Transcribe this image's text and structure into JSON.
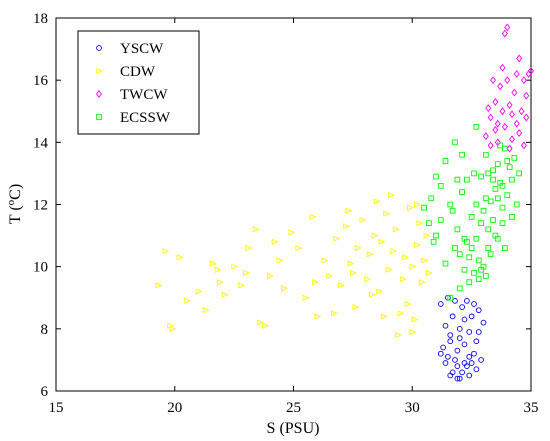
{
  "chart_data": {
    "type": "scatter",
    "xlabel": "S (PSU)",
    "ylabel_main": "T (",
    "ylabel_sup": "o",
    "ylabel_tail": "C)",
    "xlim": [
      15,
      35
    ],
    "ylim": [
      6,
      18
    ],
    "xticks": [
      "15",
      "20",
      "25",
      "30",
      "35"
    ],
    "yticks": [
      "6",
      "8",
      "10",
      "12",
      "14",
      "16",
      "18"
    ],
    "grid": false,
    "legend_position": "top-left",
    "series": [
      {
        "name": "YSCW",
        "color": "#0000ff",
        "marker": "circle",
        "points": [
          [
            31.2,
            8.8
          ],
          [
            31.4,
            8.1
          ],
          [
            31.6,
            7.8
          ],
          [
            31.3,
            7.4
          ],
          [
            31.5,
            7.1
          ],
          [
            31.8,
            7.0
          ],
          [
            31.9,
            6.8
          ],
          [
            31.7,
            6.6
          ],
          [
            31.6,
            6.5
          ],
          [
            32.0,
            6.4
          ],
          [
            32.1,
            6.6
          ],
          [
            32.3,
            6.8
          ],
          [
            32.4,
            6.5
          ],
          [
            32.5,
            6.9
          ],
          [
            31.9,
            7.3
          ],
          [
            32.2,
            7.5
          ],
          [
            32.6,
            7.2
          ],
          [
            32.7,
            7.6
          ],
          [
            32.4,
            7.9
          ],
          [
            32.0,
            8.0
          ],
          [
            32.2,
            8.3
          ],
          [
            32.5,
            8.4
          ],
          [
            32.8,
            8.6
          ],
          [
            32.1,
            8.7
          ],
          [
            31.8,
            8.9
          ],
          [
            32.3,
            8.9
          ],
          [
            32.6,
            8.8
          ],
          [
            31.5,
            9.0
          ],
          [
            32.9,
            7.0
          ],
          [
            32.7,
            6.7
          ],
          [
            31.4,
            6.9
          ],
          [
            31.2,
            7.2
          ],
          [
            32.0,
            7.7
          ],
          [
            31.7,
            8.4
          ],
          [
            32.4,
            7.1
          ],
          [
            33.0,
            8.2
          ],
          [
            31.9,
            6.4
          ],
          [
            32.8,
            7.9
          ],
          [
            31.6,
            7.6
          ],
          [
            32.2,
            6.9
          ]
        ]
      },
      {
        "name": "CDW",
        "color": "#ffff00",
        "marker": "triangle-right",
        "points": [
          [
            19.3,
            9.4
          ],
          [
            19.6,
            10.5
          ],
          [
            19.8,
            8.1
          ],
          [
            19.9,
            8.0
          ],
          [
            20.2,
            10.3
          ],
          [
            20.5,
            8.9
          ],
          [
            21.0,
            9.2
          ],
          [
            21.3,
            8.6
          ],
          [
            21.6,
            10.1
          ],
          [
            21.9,
            9.5
          ],
          [
            22.1,
            9.1
          ],
          [
            22.5,
            10.0
          ],
          [
            23.0,
            9.8
          ],
          [
            23.4,
            11.2
          ],
          [
            23.6,
            8.2
          ],
          [
            23.8,
            8.1
          ],
          [
            24.0,
            9.7
          ],
          [
            24.2,
            10.8
          ],
          [
            24.6,
            9.3
          ],
          [
            24.9,
            11.1
          ],
          [
            25.2,
            10.6
          ],
          [
            25.5,
            9.0
          ],
          [
            25.8,
            11.6
          ],
          [
            26.0,
            8.4
          ],
          [
            26.3,
            10.2
          ],
          [
            26.5,
            9.7
          ],
          [
            26.8,
            10.9
          ],
          [
            27.0,
            9.4
          ],
          [
            27.2,
            11.3
          ],
          [
            27.4,
            10.1
          ],
          [
            27.5,
            9.8
          ],
          [
            27.7,
            10.6
          ],
          [
            27.9,
            11.5
          ],
          [
            28.1,
            9.6
          ],
          [
            28.2,
            10.4
          ],
          [
            28.4,
            11.0
          ],
          [
            28.6,
            9.2
          ],
          [
            28.7,
            10.8
          ],
          [
            28.9,
            11.7
          ],
          [
            29.0,
            9.9
          ],
          [
            29.2,
            10.5
          ],
          [
            29.3,
            11.2
          ],
          [
            29.5,
            8.5
          ],
          [
            29.6,
            9.6
          ],
          [
            29.7,
            10.3
          ],
          [
            29.9,
            11.9
          ],
          [
            30.0,
            10.0
          ],
          [
            30.1,
            8.3
          ],
          [
            30.2,
            10.7
          ],
          [
            30.3,
            11.4
          ],
          [
            30.4,
            9.5
          ],
          [
            30.5,
            10.2
          ],
          [
            30.6,
            11.0
          ],
          [
            30.7,
            9.8
          ],
          [
            29.8,
            8.8
          ],
          [
            30.0,
            7.9
          ],
          [
            29.4,
            7.8
          ],
          [
            28.8,
            8.4
          ],
          [
            28.3,
            9.1
          ],
          [
            27.6,
            8.7
          ],
          [
            26.7,
            8.5
          ],
          [
            25.9,
            9.5
          ],
          [
            24.4,
            10.2
          ],
          [
            23.1,
            10.6
          ],
          [
            22.8,
            9.4
          ],
          [
            21.8,
            9.9
          ],
          [
            27.3,
            11.8
          ],
          [
            28.5,
            12.1
          ],
          [
            29.1,
            12.3
          ],
          [
            30.2,
            12.0
          ]
        ]
      },
      {
        "name": "TWCW",
        "color": "#ff00ff",
        "marker": "diamond",
        "points": [
          [
            33.1,
            14.2
          ],
          [
            33.3,
            14.8
          ],
          [
            33.5,
            15.3
          ],
          [
            33.6,
            14.0
          ],
          [
            33.7,
            15.8
          ],
          [
            33.8,
            16.4
          ],
          [
            33.9,
            17.5
          ],
          [
            34.0,
            17.7
          ],
          [
            33.4,
            16.0
          ],
          [
            33.2,
            15.1
          ],
          [
            33.9,
            14.5
          ],
          [
            34.1,
            15.2
          ],
          [
            34.2,
            14.1
          ],
          [
            34.3,
            15.6
          ],
          [
            34.4,
            16.2
          ],
          [
            34.5,
            16.7
          ],
          [
            34.6,
            15.0
          ],
          [
            34.7,
            16.0
          ],
          [
            34.8,
            14.8
          ],
          [
            34.9,
            16.2
          ],
          [
            35.0,
            16.3
          ],
          [
            34.8,
            15.5
          ],
          [
            34.5,
            14.3
          ],
          [
            34.2,
            14.9
          ],
          [
            33.6,
            14.6
          ],
          [
            33.3,
            13.9
          ],
          [
            34.1,
            13.8
          ],
          [
            33.8,
            15.0
          ],
          [
            34.4,
            14.6
          ],
          [
            34.7,
            13.9
          ],
          [
            33.5,
            14.4
          ],
          [
            34.0,
            16.0
          ]
        ]
      },
      {
        "name": "ECSSW",
        "color": "#00ff00",
        "marker": "square",
        "points": [
          [
            30.5,
            11.9
          ],
          [
            30.8,
            12.2
          ],
          [
            31.0,
            11.0
          ],
          [
            31.2,
            12.6
          ],
          [
            31.4,
            13.4
          ],
          [
            31.6,
            12.0
          ],
          [
            31.8,
            14.0
          ],
          [
            31.9,
            11.2
          ],
          [
            32.0,
            10.4
          ],
          [
            32.1,
            12.4
          ],
          [
            32.2,
            9.9
          ],
          [
            32.3,
            10.8
          ],
          [
            32.4,
            9.5
          ],
          [
            32.5,
            11.6
          ],
          [
            32.6,
            13.0
          ],
          [
            32.7,
            14.5
          ],
          [
            32.8,
            10.2
          ],
          [
            32.9,
            12.9
          ],
          [
            33.0,
            11.8
          ],
          [
            33.1,
            13.6
          ],
          [
            33.2,
            10.6
          ],
          [
            33.3,
            12.1
          ],
          [
            33.4,
            13.1
          ],
          [
            33.5,
            12.5
          ],
          [
            33.6,
            13.3
          ],
          [
            33.7,
            12.7
          ],
          [
            33.8,
            11.9
          ],
          [
            33.9,
            13.8
          ],
          [
            34.0,
            12.3
          ],
          [
            34.1,
            13.2
          ],
          [
            34.2,
            12.8
          ],
          [
            34.3,
            13.5
          ],
          [
            34.4,
            12.0
          ],
          [
            34.5,
            13.0
          ],
          [
            33.2,
            11.2
          ],
          [
            33.4,
            11.5
          ],
          [
            33.6,
            10.9
          ],
          [
            33.8,
            11.4
          ],
          [
            33.0,
            10.0
          ],
          [
            32.8,
            9.6
          ],
          [
            32.6,
            9.8
          ],
          [
            32.4,
            10.3
          ],
          [
            32.2,
            10.9
          ],
          [
            32.0,
            9.3
          ],
          [
            31.8,
            10.6
          ],
          [
            31.6,
            9.0
          ],
          [
            31.4,
            10.1
          ],
          [
            31.2,
            11.5
          ],
          [
            31.0,
            12.9
          ],
          [
            30.9,
            10.8
          ],
          [
            30.7,
            11.4
          ],
          [
            33.7,
            13.9
          ],
          [
            34.2,
            11.6
          ],
          [
            33.9,
            10.6
          ],
          [
            33.5,
            11.0
          ],
          [
            33.3,
            10.4
          ],
          [
            33.1,
            12.2
          ],
          [
            32.9,
            11.4
          ],
          [
            32.7,
            12.0
          ],
          [
            32.5,
            10.6
          ],
          [
            32.3,
            12.8
          ],
          [
            32.1,
            13.6
          ],
          [
            31.9,
            12.8
          ],
          [
            31.7,
            11.8
          ],
          [
            33.6,
            12.2
          ],
          [
            33.4,
            12.8
          ],
          [
            33.8,
            12.6
          ],
          [
            34.0,
            13.4
          ],
          [
            33.2,
            13.0
          ],
          [
            32.9,
            9.9
          ],
          [
            33.1,
            9.7
          ],
          [
            32.7,
            10.9
          ]
        ]
      }
    ]
  }
}
